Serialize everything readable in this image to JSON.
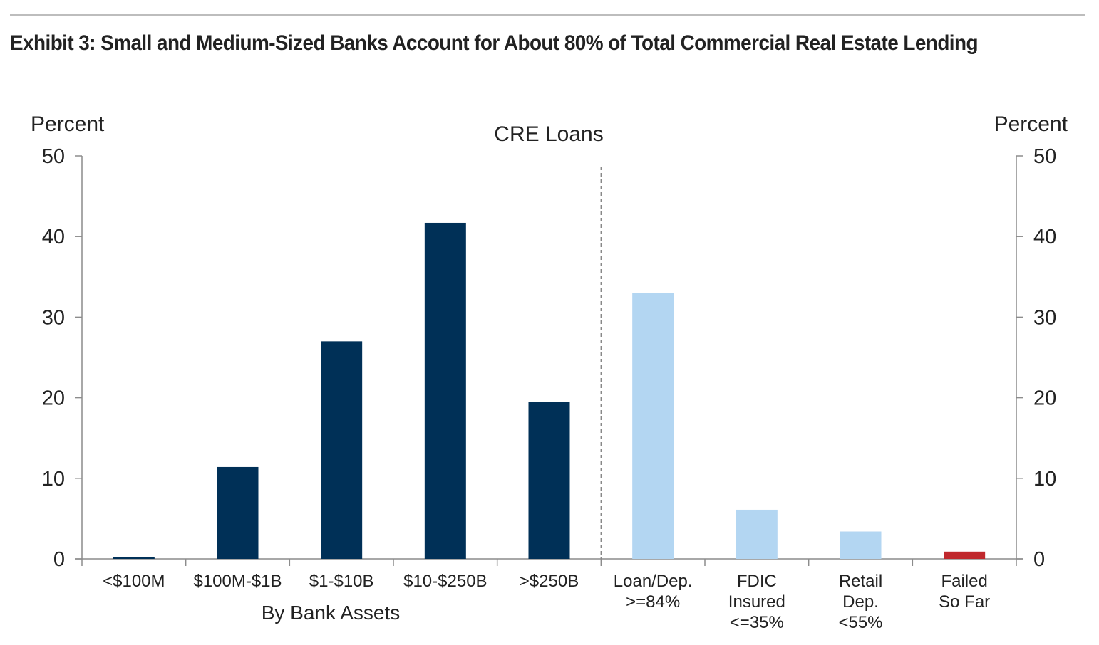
{
  "title": "Exhibit 3: Small and Medium-Sized Banks Account for About 80% of Total Commercial Real Estate Lending",
  "colors": {
    "dark": "#003057",
    "light": "#b3d6f2",
    "red": "#c0282d",
    "axis": "#8c8c8c",
    "divider": "#888888"
  },
  "chart_data": {
    "type": "bar",
    "title": "CRE Loans",
    "ylabel_left": "Percent",
    "ylabel_right": "Percent",
    "ylim": [
      0,
      50
    ],
    "yticks": [
      0,
      10,
      20,
      30,
      40,
      50
    ],
    "group_label": "By Bank Assets",
    "grid": false,
    "categories": [
      [
        "<$100M"
      ],
      [
        "$100M-$1B"
      ],
      [
        "$1-$10B"
      ],
      [
        "$10-$250B"
      ],
      [
        ">$250B"
      ],
      [
        "Loan/Dep.",
        ">=84%"
      ],
      [
        "FDIC",
        "Insured",
        "<=35%"
      ],
      [
        "Retail",
        "Dep.",
        "<55%"
      ],
      [
        "Failed",
        "So Far"
      ]
    ],
    "values": [
      0.2,
      11.4,
      27.0,
      41.7,
      19.5,
      33.0,
      6.1,
      3.4,
      0.9
    ],
    "bar_colors": [
      "dark",
      "dark",
      "dark",
      "dark",
      "dark",
      "light",
      "light",
      "light",
      "red"
    ]
  }
}
